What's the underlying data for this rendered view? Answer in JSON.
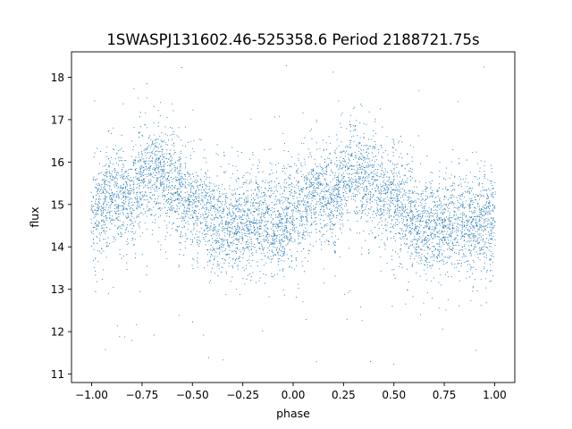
{
  "chart_data": {
    "type": "scatter",
    "title": "1SWASPJ131602.46-525358.6 Period 2188721.75s",
    "xlabel": "phase",
    "ylabel": "flux",
    "xlim": [
      -1.1,
      1.1
    ],
    "ylim": [
      10.8,
      18.6
    ],
    "xticks": [
      -1.0,
      -0.75,
      -0.5,
      -0.25,
      0.0,
      0.25,
      0.5,
      0.75,
      1.0
    ],
    "xtick_labels": [
      "−1.00",
      "−0.75",
      "−0.50",
      "−0.25",
      "0.00",
      "0.25",
      "0.50",
      "0.75",
      "1.00"
    ],
    "yticks": [
      11,
      12,
      13,
      14,
      15,
      16,
      17,
      18
    ],
    "ytick_labels": [
      "11",
      "12",
      "13",
      "14",
      "15",
      "16",
      "17",
      "18"
    ],
    "grid": false,
    "marker_color": "#1f77b4",
    "series": [
      {
        "x_range": [
          -1.0,
          1.0
        ],
        "description_points": [
          {
            "x": -1.0,
            "y": 14.7
          },
          {
            "x": -0.95,
            "y": 15.0
          },
          {
            "x": -0.9,
            "y": 15.3
          },
          {
            "x": -0.85,
            "y": 15.2
          },
          {
            "x": -0.8,
            "y": 15.1
          },
          {
            "x": -0.75,
            "y": 15.6
          },
          {
            "x": -0.7,
            "y": 15.8
          },
          {
            "x": -0.65,
            "y": 15.7
          },
          {
            "x": -0.6,
            "y": 15.5
          },
          {
            "x": -0.55,
            "y": 15.2
          },
          {
            "x": -0.5,
            "y": 15.0
          },
          {
            "x": -0.45,
            "y": 14.9
          },
          {
            "x": -0.4,
            "y": 14.6
          },
          {
            "x": -0.35,
            "y": 14.4
          },
          {
            "x": -0.3,
            "y": 14.5
          },
          {
            "x": -0.25,
            "y": 14.5
          },
          {
            "x": -0.2,
            "y": 14.6
          },
          {
            "x": -0.15,
            "y": 14.6
          },
          {
            "x": -0.1,
            "y": 14.5
          },
          {
            "x": -0.05,
            "y": 14.6
          },
          {
            "x": 0.0,
            "y": 14.7
          },
          {
            "x": 0.05,
            "y": 15.0
          },
          {
            "x": 0.1,
            "y": 15.3
          },
          {
            "x": 0.15,
            "y": 15.2
          },
          {
            "x": 0.2,
            "y": 15.1
          },
          {
            "x": 0.25,
            "y": 15.6
          },
          {
            "x": 0.3,
            "y": 15.8
          },
          {
            "x": 0.35,
            "y": 15.7
          },
          {
            "x": 0.4,
            "y": 15.5
          },
          {
            "x": 0.45,
            "y": 15.2
          },
          {
            "x": 0.5,
            "y": 15.0
          },
          {
            "x": 0.55,
            "y": 14.9
          },
          {
            "x": 0.6,
            "y": 14.6
          },
          {
            "x": 0.65,
            "y": 14.4
          },
          {
            "x": 0.7,
            "y": 14.5
          },
          {
            "x": 0.75,
            "y": 14.5
          },
          {
            "x": 0.8,
            "y": 14.6
          },
          {
            "x": 0.85,
            "y": 14.6
          },
          {
            "x": 0.9,
            "y": 14.5
          },
          {
            "x": 0.95,
            "y": 14.6
          },
          {
            "x": 1.0,
            "y": 14.7
          }
        ],
        "scatter_spread": 0.55,
        "y_extent": [
          11.1,
          18.5
        ]
      }
    ]
  }
}
